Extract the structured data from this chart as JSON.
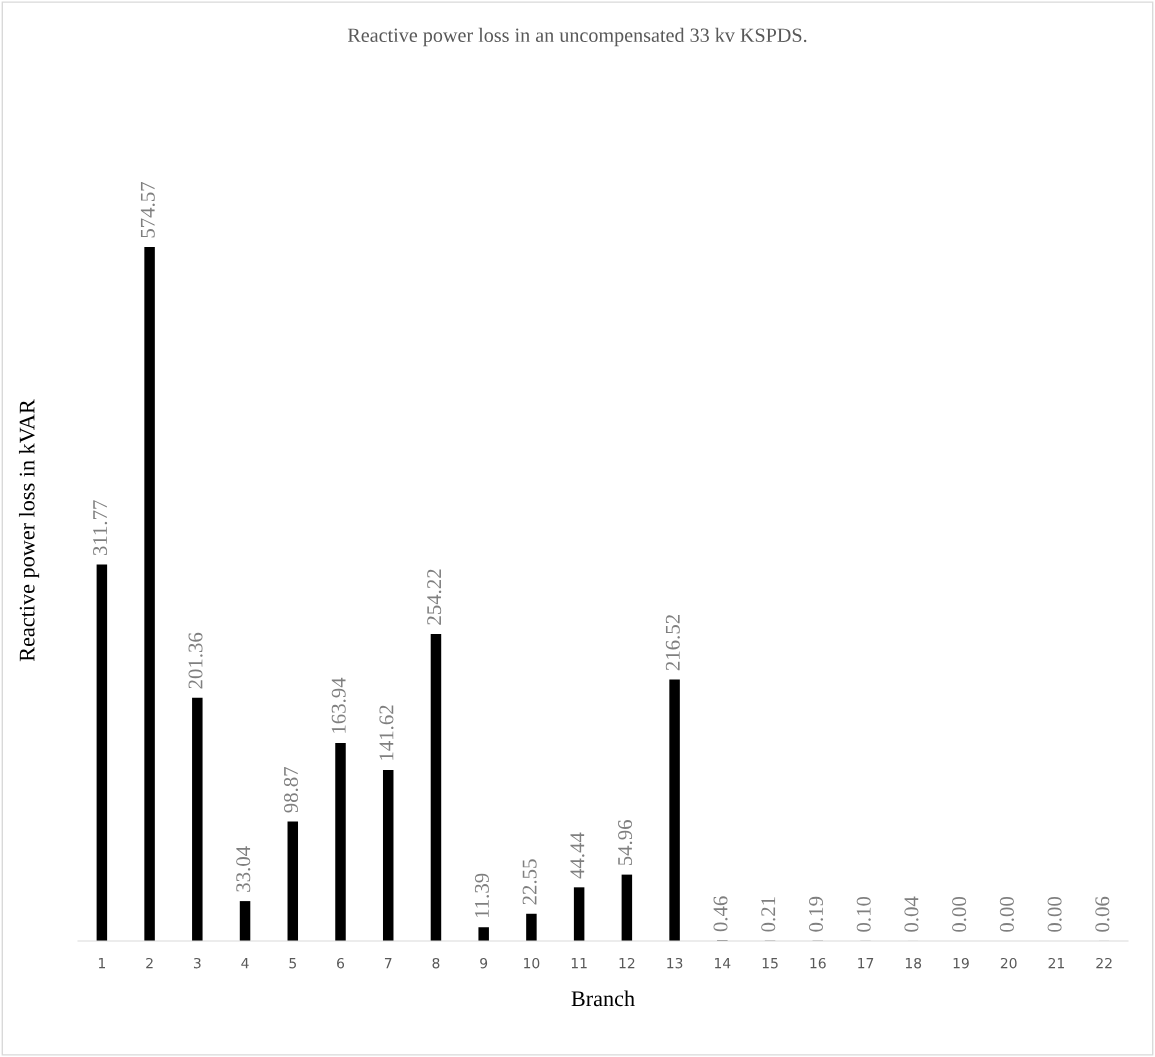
{
  "chart_data": {
    "type": "bar",
    "title": "Reactive power loss in an uncompensated 33 kv KSPDS.",
    "xlabel": "Branch",
    "ylabel": "Reactive power loss in kVAR",
    "categories": [
      "1",
      "2",
      "3",
      "4",
      "5",
      "6",
      "7",
      "8",
      "9",
      "10",
      "11",
      "12",
      "13",
      "14",
      "15",
      "16",
      "17",
      "18",
      "19",
      "20",
      "21",
      "22"
    ],
    "values": [
      311.77,
      574.57,
      201.36,
      33.04,
      98.87,
      163.94,
      141.62,
      254.22,
      11.39,
      22.55,
      44.44,
      54.96,
      216.52,
      0.46,
      0.21,
      0.19,
      0.1,
      0.04,
      0.0,
      0.0,
      0.0,
      0.06
    ],
    "value_labels": [
      "311.77",
      "574.57",
      "201.36",
      "33.04",
      "98.87",
      "163.94",
      "141.62",
      "254.22",
      "11.39",
      "22.55",
      "44.44",
      "54.96",
      "216.52",
      "0.46",
      "0.21",
      "0.19",
      "0.10",
      "0.04",
      "0.00",
      "0.00",
      "0.00",
      "0.06"
    ],
    "color": "#000000",
    "grid": false,
    "legend": false
  }
}
